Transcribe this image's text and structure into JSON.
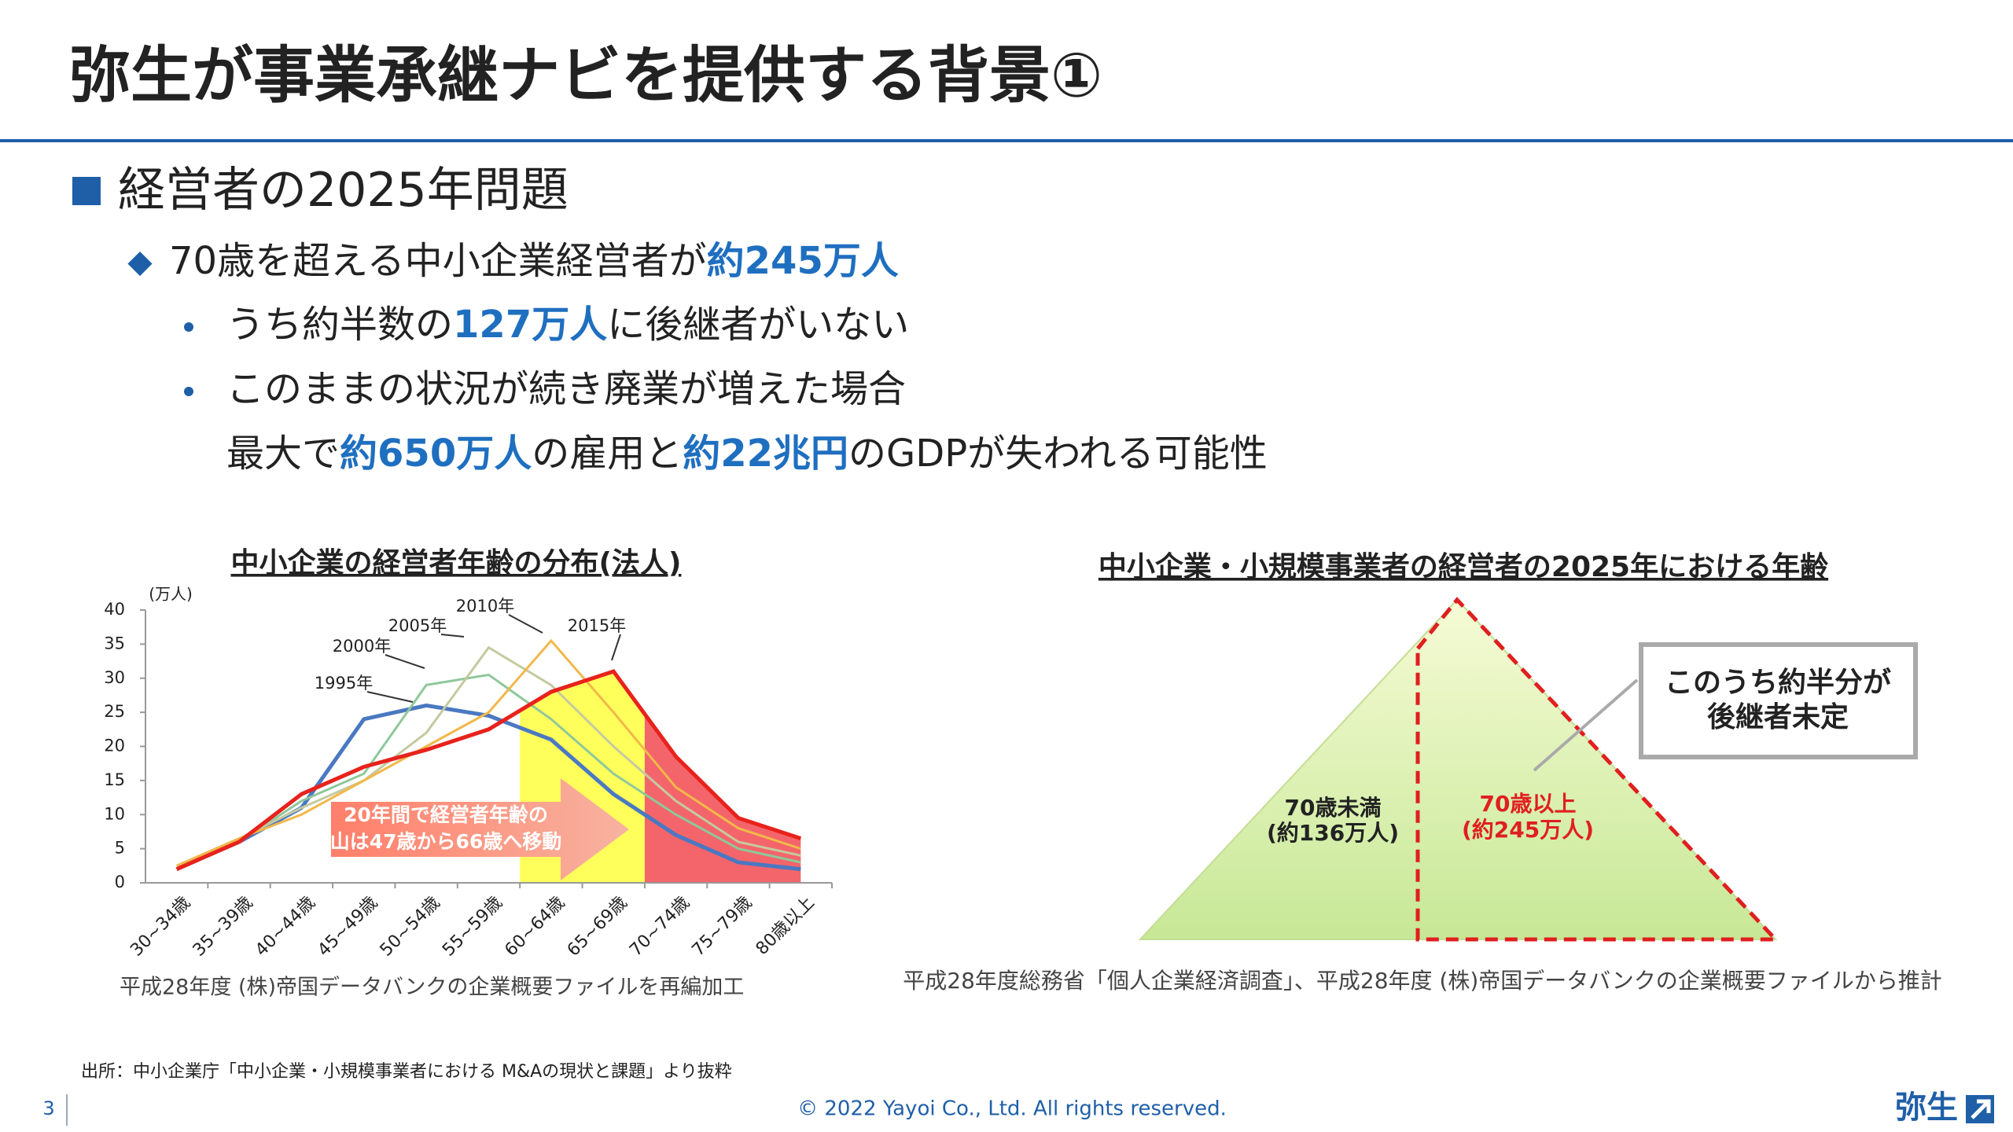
{
  "header": {
    "title": "弥生が事業承継ナビを提供する背景①"
  },
  "bullets": [
    {
      "level": 1,
      "runs": [
        {
          "text": "経営者の2025年問題",
          "highlight": false
        }
      ]
    },
    {
      "level": 2,
      "runs": [
        {
          "text": "70歳を超える中小企業経営者が",
          "highlight": false
        },
        {
          "text": "約245万人",
          "highlight": true
        }
      ]
    },
    {
      "level": 3,
      "runs": [
        {
          "text": "うち約半数の",
          "highlight": false
        },
        {
          "text": "127万人",
          "highlight": true
        },
        {
          "text": "に後継者がいない",
          "highlight": false
        }
      ]
    },
    {
      "level": 3,
      "runs": [
        {
          "text": "このままの状況が続き廃業が増えた場合",
          "highlight": false
        }
      ]
    },
    {
      "level": 4,
      "runs": [
        {
          "text": "最大で",
          "highlight": false
        },
        {
          "text": "約650万人",
          "highlight": true
        },
        {
          "text": "の雇用と",
          "highlight": false
        },
        {
          "text": "約22兆円",
          "highlight": true
        },
        {
          "text": "のGDPが失われる可能性",
          "highlight": false
        }
      ]
    }
  ],
  "chart_data": {
    "type": "line",
    "title": "中小企業の経営者年齢の分布(法人)",
    "y_unit": "(万人)",
    "categories": [
      "30~34歳",
      "35~39歳",
      "40~44歳",
      "45~49歳",
      "50~54歳",
      "55~59歳",
      "60~64歳",
      "65~69歳",
      "70~74歳",
      "75~79歳",
      "80歳以上"
    ],
    "series": [
      {
        "name": "1995年",
        "color": "#4a78c2",
        "values": [
          2,
          6,
          11,
          24,
          26,
          24.5,
          21,
          13,
          7,
          3,
          2
        ]
      },
      {
        "name": "2000年",
        "color": "#8fc79a",
        "values": [
          2.5,
          6,
          12,
          16,
          29,
          30.5,
          24,
          16,
          10,
          5,
          3
        ]
      },
      {
        "name": "2005年",
        "color": "#c5c9a0",
        "values": [
          2.5,
          6.5,
          11,
          15,
          22,
          34.5,
          29,
          20,
          12,
          6,
          4
        ]
      },
      {
        "name": "2010年",
        "color": "#f2b84a",
        "values": [
          2.5,
          6.5,
          10,
          15,
          20,
          25,
          35.5,
          25,
          14,
          8,
          5
        ]
      },
      {
        "name": "2015年",
        "color": "#e8221c",
        "values": [
          2,
          6,
          13,
          17,
          19.5,
          22.5,
          28,
          31,
          18.5,
          9.5,
          6.5
        ]
      }
    ],
    "ylim": [
      0,
      40
    ],
    "yticks": [
      0,
      5,
      10,
      15,
      20,
      25,
      30,
      35,
      40
    ],
    "annotation": [
      "20年間で経営者年齢の",
      "山は47歳から66歳へ移動"
    ],
    "source": "平成28年度 (株)帝国データバンクの企業概要ファイルを再編加工"
  },
  "pyramid": {
    "title": "中小企業・小規模事業者の経営者の2025年における年齢",
    "left_label": [
      "70歳未満",
      "(約136万人)"
    ],
    "right_label": [
      "70歳以上",
      "(約245万人)"
    ],
    "callout": [
      "このうち約半分が",
      "後継者未定"
    ],
    "source": "平成28年度総務省「個人企業経済調査」、平成28年度 (株)帝国データバンクの企業概要ファイルから推計"
  },
  "footer": {
    "note": "出所：中小企業庁「中小企業・小規模事業者における M&Aの現状と課題」より抜粋",
    "page": "3",
    "copyright": "© 2022 Yayoi Co., Ltd.  All rights reserved.",
    "logo": "弥生"
  }
}
